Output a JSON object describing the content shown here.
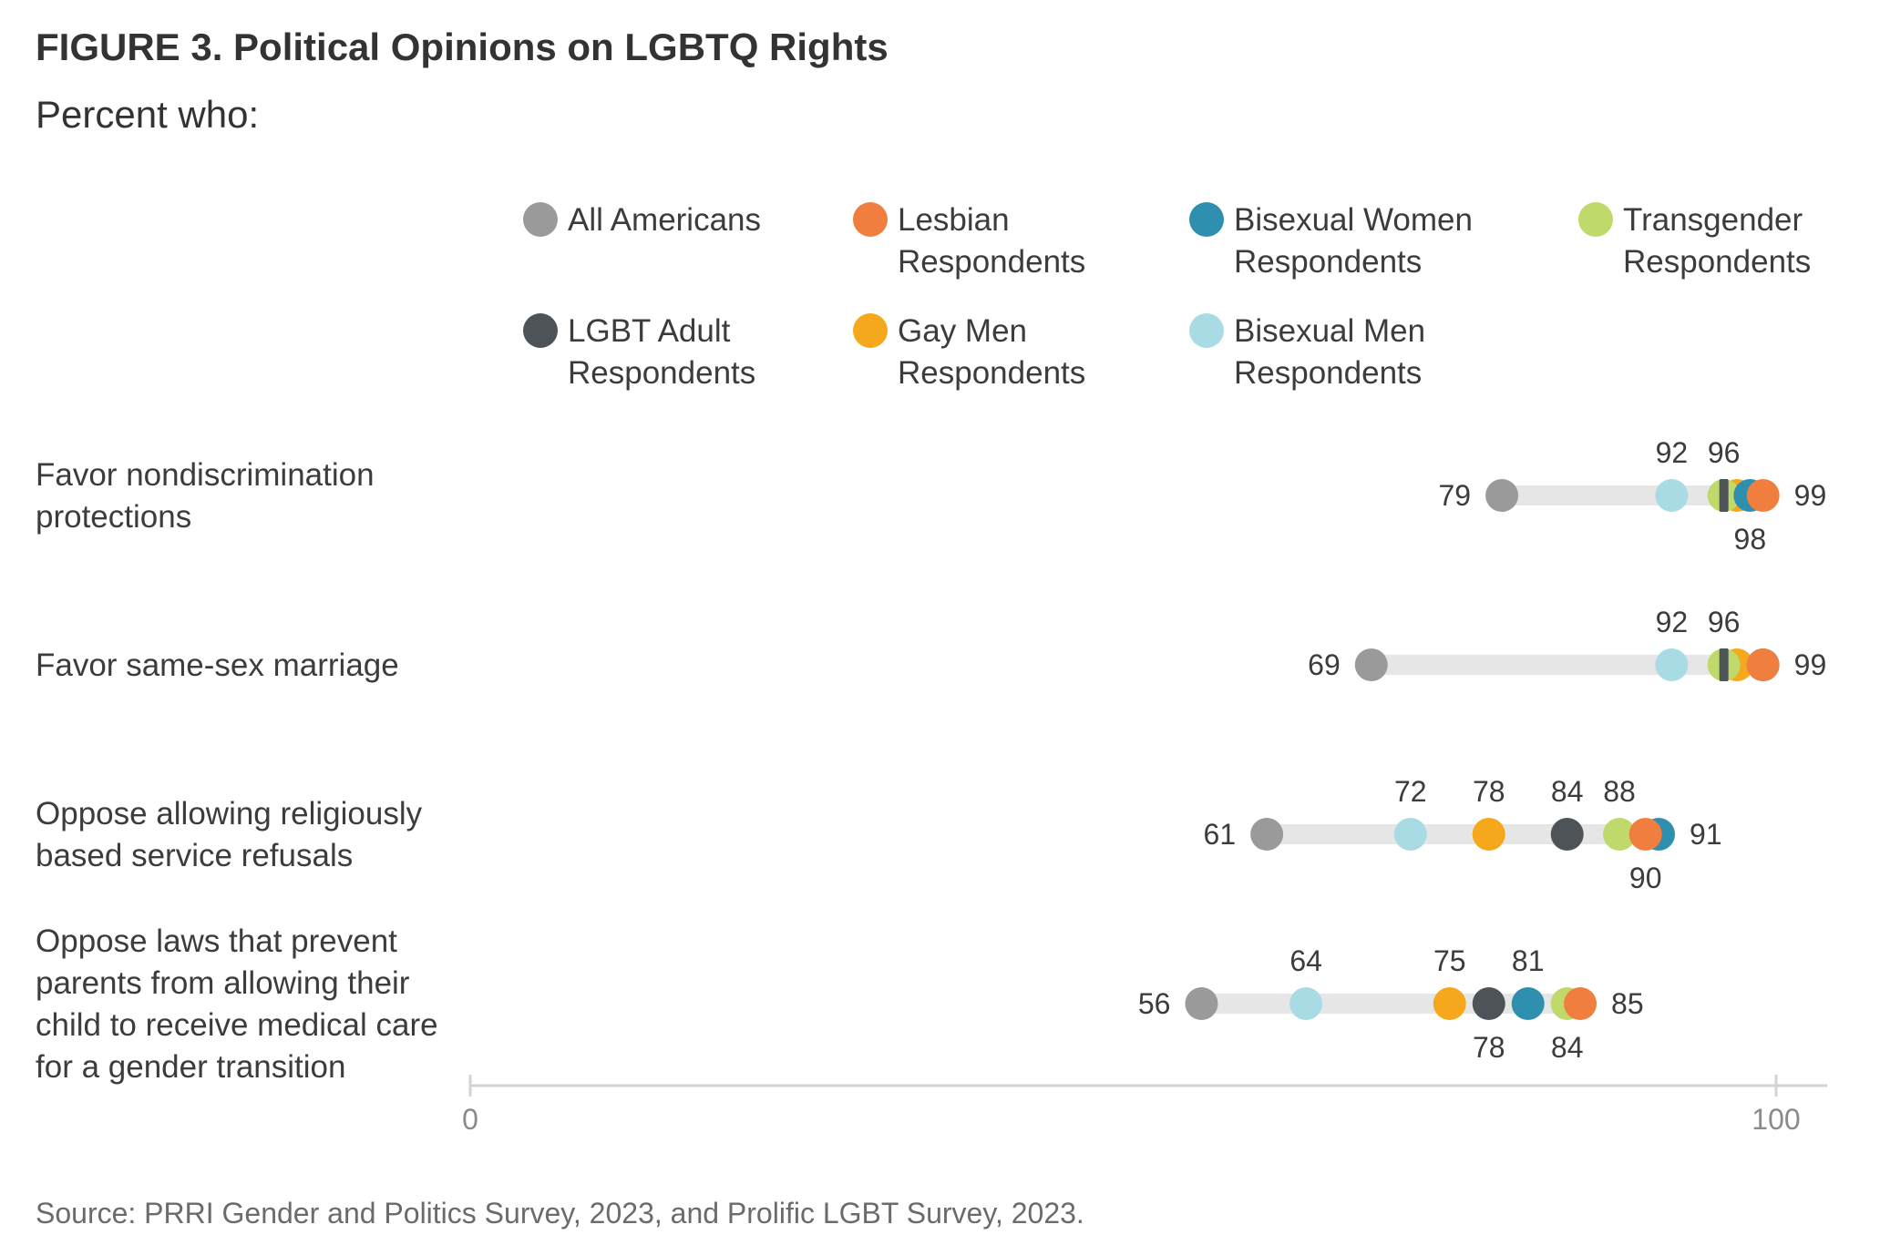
{
  "header": {
    "title": "FIGURE 3.  Political Opinions on LGBTQ Rights",
    "subtitle": "Percent who:"
  },
  "footer": {
    "source": "Source: PRRI Gender and Politics Survey, 2023, and Prolific LGBT Survey, 2023."
  },
  "chart_data": {
    "type": "scatter",
    "subtype": "dot-range",
    "xlim": [
      0,
      100
    ],
    "x_ticks": [
      "0",
      "100"
    ],
    "grid": false,
    "legend_position": "top",
    "legend": [
      {
        "key": "all",
        "lines": [
          "All Americans"
        ],
        "color": "#9a9a9a"
      },
      {
        "key": "lesbian",
        "lines": [
          "Lesbian",
          "Respondents"
        ],
        "color": "#f07f3f"
      },
      {
        "key": "biwomen",
        "lines": [
          "Bisexual Women",
          "Respondents"
        ],
        "color": "#2e8fae"
      },
      {
        "key": "trans",
        "lines": [
          "Transgender",
          "Respondents"
        ],
        "color": "#bfd96a"
      },
      {
        "key": "lgbt",
        "lines": [
          "LGBT Adult",
          "Respondents"
        ],
        "color": "#4d5357"
      },
      {
        "key": "gay",
        "lines": [
          "Gay Men",
          "Respondents"
        ],
        "color": "#f5a81c"
      },
      {
        "key": "bimen",
        "lines": [
          "Bisexual Men",
          "Respondents"
        ],
        "color": "#a8dbe4"
      }
    ],
    "series": [
      {
        "key": "all",
        "name": "All Americans",
        "values": [
          79,
          69,
          61,
          56
        ]
      },
      {
        "key": "bimen",
        "name": "Bisexual Men Respondents",
        "values": [
          92,
          92,
          72,
          64
        ]
      },
      {
        "key": "gay",
        "name": "Gay Men Respondents",
        "values": [
          97,
          97,
          78,
          75
        ]
      },
      {
        "key": "lgbt",
        "name": "LGBT Adult Respondents",
        "values": [
          96,
          96,
          84,
          78
        ]
      },
      {
        "key": "trans",
        "name": "Transgender Respondents",
        "values": [
          96,
          96,
          88,
          84
        ]
      },
      {
        "key": "biwomen",
        "name": "Bisexual Women Respondents",
        "values": [
          98,
          99,
          91,
          81
        ]
      },
      {
        "key": "lesbian",
        "name": "Lesbian Respondents",
        "values": [
          99,
          99,
          90,
          85
        ]
      }
    ],
    "rows": [
      {
        "label": [
          "Favor nondiscrimination",
          "protections"
        ],
        "labels": [
          {
            "text": "79",
            "value": 79,
            "pos": "left"
          },
          {
            "text": "92",
            "value": 92,
            "pos": "above"
          },
          {
            "text": "96",
            "value": 96,
            "pos": "above"
          },
          {
            "text": "98",
            "value": 98,
            "pos": "below"
          },
          {
            "text": "99",
            "value": 99,
            "pos": "right"
          }
        ]
      },
      {
        "label": [
          "Favor same-sex marriage"
        ],
        "labels": [
          {
            "text": "69",
            "value": 69,
            "pos": "left"
          },
          {
            "text": "92",
            "value": 92,
            "pos": "above"
          },
          {
            "text": "96",
            "value": 96,
            "pos": "above"
          },
          {
            "text": "99",
            "value": 99,
            "pos": "right"
          }
        ]
      },
      {
        "label": [
          "Oppose allowing religiously",
          "based service refusals"
        ],
        "labels": [
          {
            "text": "61",
            "value": 61,
            "pos": "left"
          },
          {
            "text": "72",
            "value": 72,
            "pos": "above"
          },
          {
            "text": "78",
            "value": 78,
            "pos": "above"
          },
          {
            "text": "84",
            "value": 84,
            "pos": "above"
          },
          {
            "text": "88",
            "value": 88,
            "pos": "above"
          },
          {
            "text": "90",
            "value": 90,
            "pos": "below"
          },
          {
            "text": "91",
            "value": 91,
            "pos": "right"
          }
        ]
      },
      {
        "label": [
          "Oppose laws that prevent",
          "parents from allowing their",
          "child to receive medical care",
          "for a gender transition"
        ],
        "labels": [
          {
            "text": "56",
            "value": 56,
            "pos": "left"
          },
          {
            "text": "64",
            "value": 64,
            "pos": "above"
          },
          {
            "text": "75",
            "value": 75,
            "pos": "above"
          },
          {
            "text": "81",
            "value": 81,
            "pos": "above"
          },
          {
            "text": "78",
            "value": 78,
            "pos": "below"
          },
          {
            "text": "84",
            "value": 84,
            "pos": "below"
          },
          {
            "text": "85",
            "value": 85,
            "pos": "right"
          }
        ]
      }
    ]
  }
}
